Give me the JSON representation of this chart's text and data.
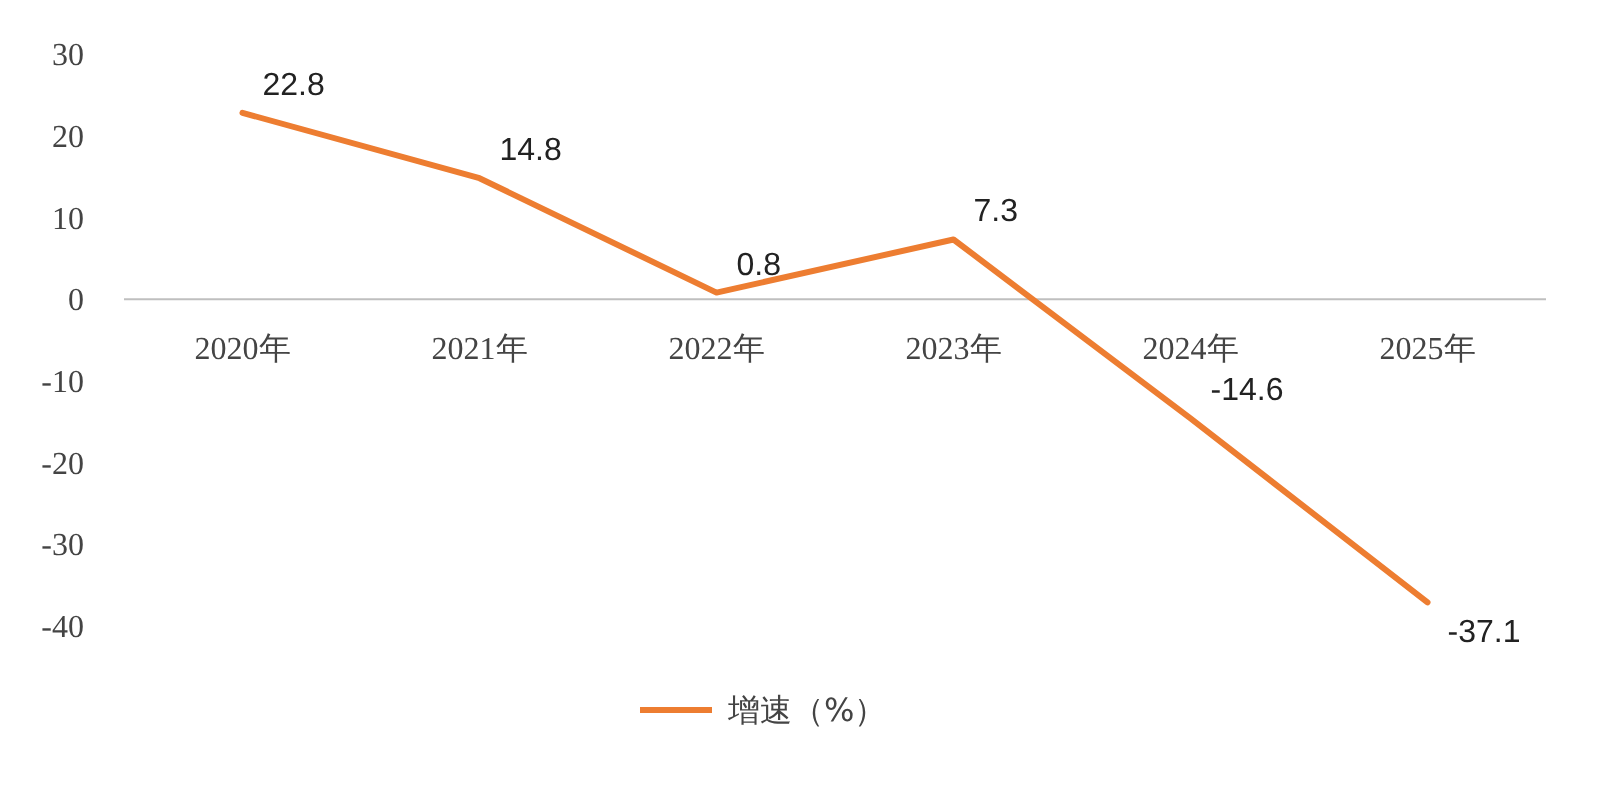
{
  "chart_data": {
    "type": "line",
    "categories": [
      "2020年",
      "2021年",
      "2022年",
      "2023年",
      "2024年",
      "2025年"
    ],
    "series": [
      {
        "name": "增速（%）",
        "color": "#ed7d31",
        "values": [
          22.8,
          14.8,
          0.8,
          7.3,
          -14.6,
          -37.1
        ]
      }
    ],
    "ylim": [
      -40,
      30
    ],
    "yticks": [
      -40,
      -30,
      -20,
      -10,
      0,
      10,
      20,
      30
    ],
    "data_labels": true,
    "legend": "bottom",
    "marker": "none",
    "line_style": "solid"
  }
}
